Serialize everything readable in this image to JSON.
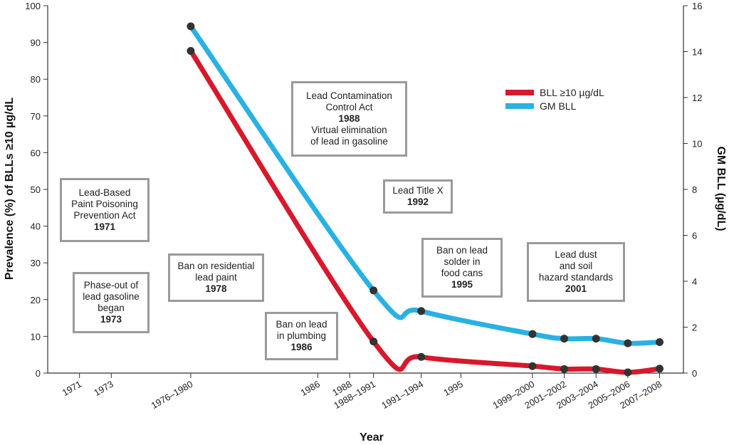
{
  "chart_data": {
    "type": "line",
    "title": "",
    "xlabel": "Year",
    "ylabel_left": "Prevalence (%) of BLLs ≥10 µg/dL",
    "ylabel_right": "GM BLL (µg/dL)",
    "ylim_left": [
      0,
      100
    ],
    "ylim_right": [
      0,
      16
    ],
    "yticks_left": [
      0,
      10,
      20,
      30,
      40,
      50,
      60,
      70,
      80,
      90,
      100
    ],
    "yticks_right": [
      0,
      2,
      4,
      6,
      8,
      10,
      12,
      14,
      16
    ],
    "xlim": [
      1969,
      2009
    ],
    "x_ticks": [
      {
        "label": "1971",
        "pos": 1971
      },
      {
        "label": "1973",
        "pos": 1973
      },
      {
        "label": "1976–1980",
        "pos": 1978
      },
      {
        "label": "1986",
        "pos": 1986
      },
      {
        "label": "1988",
        "pos": 1988
      },
      {
        "label": "1988–1991",
        "pos": 1989.5
      },
      {
        "label": "1991–1994",
        "pos": 1992.5
      },
      {
        "label": "1995",
        "pos": 1995
      },
      {
        "label": "1999–2000",
        "pos": 1999.5
      },
      {
        "label": "2001–2002",
        "pos": 2001.5
      },
      {
        "label": "2003–2004",
        "pos": 2003.5
      },
      {
        "label": "2005–2006",
        "pos": 2005.5
      },
      {
        "label": "2007–2008",
        "pos": 2007.5
      }
    ],
    "series": [
      {
        "name": "BLL ≥10 µg/dL",
        "axis": "left",
        "color": "#d7192b",
        "x": [
          1978,
          1989.5,
          1992.5,
          1999.5,
          2001.5,
          2003.5,
          2005.5,
          2007.5
        ],
        "values": [
          87.7,
          8.6,
          4.4,
          1.9,
          1.1,
          1.1,
          0.2,
          1.2
        ]
      },
      {
        "name": "GM BLL",
        "axis": "right",
        "color": "#2ab1e4",
        "x": [
          1978,
          1989.5,
          1992.5,
          1999.5,
          2001.5,
          2003.5,
          2005.5,
          2007.5
        ],
        "values": [
          15.1,
          3.6,
          2.7,
          1.7,
          1.5,
          1.5,
          1.3,
          1.35
        ]
      }
    ],
    "annotations": [
      {
        "lines": [
          "Lead-Based",
          "Paint Poisoning",
          "Prevention Act"
        ],
        "year": "1971"
      },
      {
        "lines": [
          "Phase-out of",
          "lead gasoline",
          "began"
        ],
        "year": "1973"
      },
      {
        "lines": [
          "Ban on residential",
          "lead paint"
        ],
        "year": "1978"
      },
      {
        "lines": [
          "Ban on lead",
          "in plumbing"
        ],
        "year": "1986"
      },
      {
        "lines": [
          "Lead Contamination",
          "Control Act"
        ],
        "year": "1988",
        "after": [
          "Virtual elimination",
          "of lead in gasoline"
        ]
      },
      {
        "lines": [
          "Lead Title X"
        ],
        "year": "1992"
      },
      {
        "lines": [
          "Ban on lead",
          "solder in",
          "food cans"
        ],
        "year": "1995"
      },
      {
        "lines": [
          "Lead dust",
          "and soil",
          "hazard standards"
        ],
        "year": "2001"
      }
    ]
  }
}
